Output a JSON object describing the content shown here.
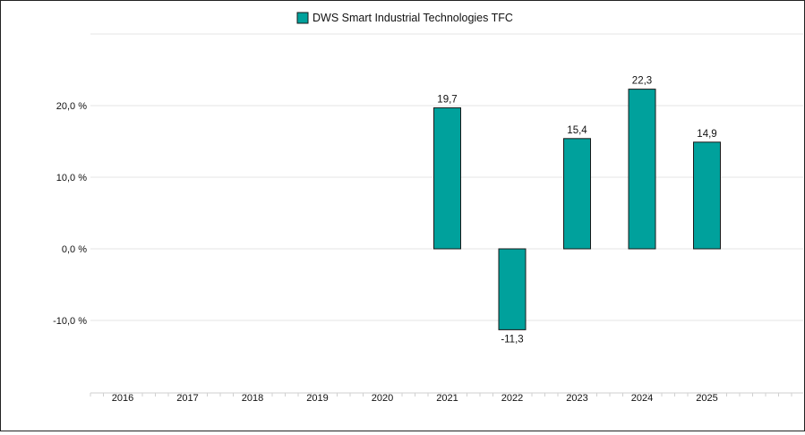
{
  "chart_data": {
    "type": "bar",
    "categories": [
      "2016",
      "2017",
      "2018",
      "2019",
      "2020",
      "2021",
      "2022",
      "2023",
      "2024",
      "2025"
    ],
    "series": [
      {
        "name": "DWS Smart Industrial Technologies TFC",
        "values": [
          null,
          null,
          null,
          null,
          null,
          19.7,
          -11.3,
          15.4,
          22.3,
          14.9
        ],
        "value_labels": [
          "",
          "",
          "",
          "",
          "",
          "19,7",
          "-11,3",
          "15,4",
          "22,3",
          "14,9"
        ]
      }
    ],
    "y_ticks": [
      20,
      10,
      0,
      -10
    ],
    "y_tick_labels": [
      "20,0 %",
      "10,0 %",
      "0,0 %",
      "-10,0 %"
    ],
    "ylim": [
      -20,
      30
    ],
    "grid": true,
    "legend": "top-center",
    "bar_color": "#00a19c",
    "bar_stroke": "#1a1a1a",
    "grid_color": "#e6e6e6",
    "title": "",
    "xlabel": "",
    "ylabel": ""
  }
}
